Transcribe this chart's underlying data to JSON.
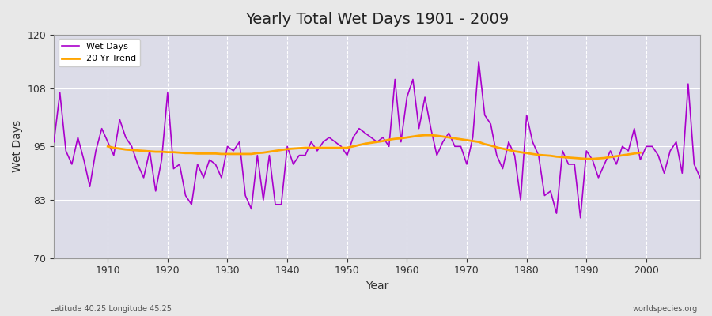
{
  "title": "Yearly Total Wet Days 1901 - 2009",
  "xlabel": "Year",
  "ylabel": "Wet Days",
  "footnote_left": "Latitude 40.25 Longitude 45.25",
  "footnote_right": "worldspecies.org",
  "ylim": [
    70,
    120
  ],
  "yticks": [
    70,
    83,
    95,
    108,
    120
  ],
  "bg_color": "#e8e8e8",
  "plot_bg_color": "#e0e0e8",
  "line_color": "#aa00cc",
  "trend_color": "#ffa500",
  "years": [
    1901,
    1902,
    1903,
    1904,
    1905,
    1906,
    1907,
    1908,
    1909,
    1910,
    1911,
    1912,
    1913,
    1914,
    1915,
    1916,
    1917,
    1918,
    1919,
    1920,
    1921,
    1922,
    1923,
    1924,
    1925,
    1926,
    1927,
    1928,
    1929,
    1930,
    1931,
    1932,
    1933,
    1934,
    1935,
    1936,
    1937,
    1938,
    1939,
    1940,
    1941,
    1942,
    1943,
    1944,
    1945,
    1946,
    1947,
    1948,
    1949,
    1950,
    1951,
    1952,
    1953,
    1954,
    1955,
    1956,
    1957,
    1958,
    1959,
    1960,
    1961,
    1962,
    1963,
    1964,
    1965,
    1966,
    1967,
    1968,
    1969,
    1970,
    1971,
    1972,
    1973,
    1974,
    1975,
    1976,
    1977,
    1978,
    1979,
    1980,
    1981,
    1982,
    1983,
    1984,
    1985,
    1986,
    1987,
    1988,
    1989,
    1990,
    1991,
    1992,
    1993,
    1994,
    1995,
    1996,
    1997,
    1998,
    1999,
    2000,
    2001,
    2002,
    2003,
    2004,
    2005,
    2006,
    2007,
    2008,
    2009
  ],
  "wet_days": [
    96,
    107,
    94,
    91,
    97,
    92,
    86,
    94,
    99,
    96,
    93,
    101,
    97,
    95,
    91,
    88,
    94,
    85,
    92,
    107,
    90,
    91,
    84,
    82,
    91,
    88,
    92,
    91,
    88,
    95,
    94,
    96,
    84,
    81,
    93,
    83,
    93,
    82,
    82,
    95,
    91,
    93,
    93,
    96,
    94,
    96,
    97,
    96,
    95,
    93,
    97,
    99,
    98,
    97,
    96,
    97,
    95,
    110,
    96,
    106,
    110,
    99,
    106,
    99,
    93,
    96,
    98,
    95,
    95,
    91,
    97,
    114,
    102,
    100,
    93,
    90,
    96,
    93,
    83,
    102,
    96,
    93,
    84,
    85,
    80,
    94,
    91,
    91,
    79,
    94,
    92,
    88,
    91,
    94,
    91,
    95,
    94,
    99,
    92,
    95,
    95,
    93,
    89,
    94,
    96,
    89,
    109,
    91,
    88
  ],
  "trend": [
    null,
    null,
    null,
    null,
    null,
    null,
    null,
    null,
    null,
    95.0,
    94.7,
    94.5,
    94.3,
    94.2,
    94.1,
    94.0,
    93.9,
    93.8,
    93.8,
    93.7,
    93.7,
    93.6,
    93.5,
    93.5,
    93.4,
    93.4,
    93.4,
    93.4,
    93.3,
    93.3,
    93.3,
    93.3,
    93.3,
    93.3,
    93.5,
    93.6,
    93.8,
    94.0,
    94.2,
    94.4,
    94.5,
    94.6,
    94.7,
    94.7,
    94.7,
    94.7,
    94.7,
    94.7,
    94.7,
    94.7,
    95.0,
    95.3,
    95.6,
    95.8,
    96.0,
    96.2,
    96.5,
    96.7,
    96.8,
    97.0,
    97.2,
    97.4,
    97.5,
    97.5,
    97.4,
    97.2,
    97.0,
    96.8,
    96.6,
    96.4,
    96.2,
    96.0,
    95.5,
    95.2,
    94.8,
    94.5,
    94.2,
    93.9,
    93.7,
    93.5,
    93.3,
    93.1,
    93.0,
    92.9,
    92.7,
    92.6,
    92.5,
    92.4,
    92.3,
    92.2,
    92.2,
    92.3,
    92.4,
    92.6,
    92.8,
    93.0,
    93.2,
    93.4,
    93.6
  ],
  "legend_wet": "Wet Days",
  "legend_trend": "20 Yr Trend"
}
